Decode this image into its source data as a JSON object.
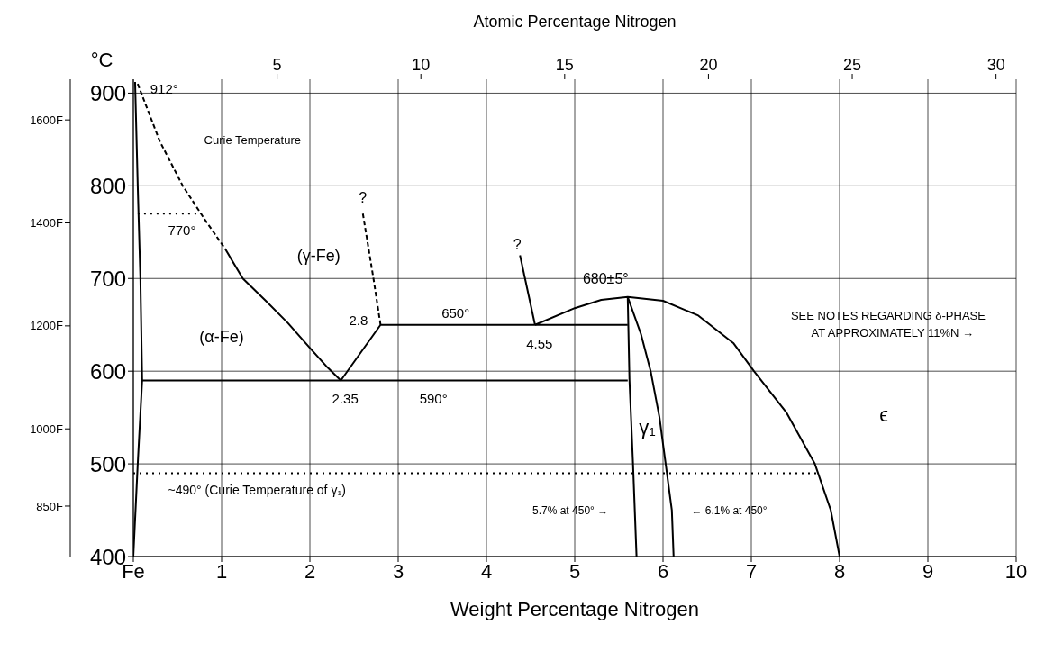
{
  "chart_data": {
    "type": "line",
    "xlabel": "Weight Percentage Nitrogen",
    "x2label": "Atomic Percentage Nitrogen",
    "ylabel": "°C",
    "xlim": [
      0,
      10
    ],
    "xticks": [
      {
        "value": 0,
        "label": "Fe"
      },
      1,
      2,
      3,
      4,
      5,
      6,
      7,
      8,
      9,
      10
    ],
    "x2lim": [
      0,
      30.7
    ],
    "x2ticks": [
      5,
      10,
      15,
      20,
      25,
      30
    ],
    "ylim": [
      400,
      915
    ],
    "yticks": [
      400,
      500,
      600,
      700,
      800,
      900
    ],
    "y2lim": [
      752,
      1679
    ],
    "y2ticks": [
      {
        "value": 850,
        "label": "850F"
      },
      {
        "value": 1000,
        "label": "1000F"
      },
      {
        "value": 1200,
        "label": "1200F"
      },
      {
        "value": 1400,
        "label": "1400F"
      },
      {
        "value": 1600,
        "label": "1600F"
      }
    ],
    "grid": true,
    "marker": "none",
    "series": [
      {
        "color": "#000000",
        "line_style": "dashed",
        "x": [
          0.05,
          0.3,
          0.56,
          0.8,
          1.04
        ],
        "values": [
          910,
          848,
          800,
          765,
          732
        ]
      },
      {
        "color": "#000000",
        "line_style": "solid",
        "x": [
          1.04,
          1.24,
          1.5,
          1.75,
          2.0,
          2.2,
          2.35
        ],
        "values": [
          732,
          700,
          676,
          652,
          625,
          604,
          590
        ]
      },
      {
        "color": "#000000",
        "line_style": "solid",
        "x": [
          0,
          0.05,
          0.1,
          0.08,
          0.05,
          0.02
        ],
        "values": [
          400,
          500,
          590,
          700,
          800,
          912
        ]
      },
      {
        "color": "#000000",
        "line_style": "solid",
        "x": [
          0.1,
          5.6
        ],
        "values": [
          590,
          590
        ]
      },
      {
        "color": "#000000",
        "line_style": "solid",
        "x": [
          2.35,
          2.8,
          5.6
        ],
        "values": [
          590,
          650,
          650
        ]
      },
      {
        "color": "#000000",
        "line_style": "dashed",
        "x": [
          2.8,
          2.72,
          2.6
        ],
        "values": [
          650,
          700,
          770
        ]
      },
      {
        "color": "#000000",
        "line_style": "solid",
        "x": [
          4.38,
          4.55
        ],
        "values": [
          725,
          650
        ]
      },
      {
        "color": "#000000",
        "line_style": "solid",
        "x": [
          4.55,
          5.0,
          5.3,
          5.6,
          6.0,
          6.4,
          6.8,
          7.03,
          7.4,
          7.72,
          7.9,
          8.0
        ],
        "values": [
          650,
          668,
          677,
          680,
          676,
          660,
          630,
          600,
          555,
          500,
          450,
          400
        ]
      },
      {
        "color": "#000000",
        "line_style": "solid",
        "x": [
          5.6,
          5.62,
          5.66,
          5.7
        ],
        "values": [
          680,
          590,
          500,
          400
        ]
      },
      {
        "color": "#000000",
        "line_style": "solid",
        "x": [
          5.6,
          5.75,
          5.86,
          5.96,
          6.03,
          6.1,
          6.12
        ],
        "values": [
          680,
          640,
          600,
          550,
          500,
          450,
          400
        ]
      },
      {
        "color": "#000000",
        "line_style": "dotted",
        "x": [
          0.05,
          0.77
        ],
        "values": [
          770,
          770
        ]
      },
      {
        "color": "#000000",
        "line_style": "dotted",
        "x": [
          0,
          7.77
        ],
        "values": [
          490,
          490
        ]
      }
    ],
    "annotations": [
      "912°",
      "Curie Temperature",
      "770°",
      "(γ-Fe)",
      "?",
      "2.8",
      "(α-Fe)",
      "2.35",
      "590°",
      "650°",
      "?",
      "4.55",
      "680±5°",
      "SEE NOTES REGARDING δ-PHASE",
      "AT APPROXIMATELY 11%N →",
      "γ₁",
      "ϵ",
      "~490° (Curie Temperature of γ₁)",
      "5.7% at 450° →",
      "← 6.1% at 450°"
    ]
  }
}
